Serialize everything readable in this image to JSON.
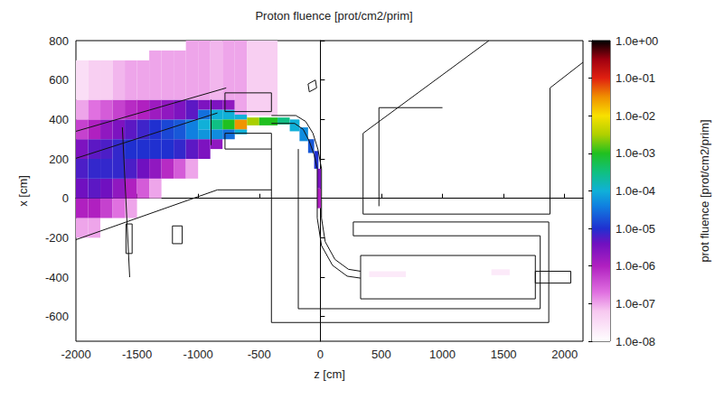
{
  "chart_data": {
    "type": "heatmap",
    "title": "Proton fluence [prot/cm2/prim]",
    "x_label": "z [cm]",
    "y_label": "x [cm]",
    "xlim": [
      -2000,
      2150
    ],
    "ylim": [
      -725,
      800
    ],
    "xticks": [
      -2000,
      -1500,
      -1000,
      -500,
      0,
      500,
      1000,
      1500,
      2000
    ],
    "yticks": [
      -600,
      -400,
      -200,
      0,
      200,
      400,
      600,
      800
    ],
    "grid": false,
    "colorbar": {
      "label": "prot fluence [prot/cm2/prim]",
      "log": true,
      "range": [
        1e-08,
        1
      ],
      "ticks": [
        {
          "value": 1,
          "label": "1.0e+00"
        },
        {
          "value": 0.1,
          "label": "1.0e-01"
        },
        {
          "value": 0.01,
          "label": "1.0e-02"
        },
        {
          "value": 0.001,
          "label": "1.0e-03"
        },
        {
          "value": 0.0001,
          "label": "1.0e-04"
        },
        {
          "value": 1e-05,
          "label": "1.0e-05"
        },
        {
          "value": 1e-06,
          "label": "1.0e-06"
        },
        {
          "value": 1e-07,
          "label": "1.0e-07"
        },
        {
          "value": 1e-08,
          "label": "1.0e-08"
        }
      ]
    },
    "cells": [
      [
        -2000,
        -1900,
        -200,
        -100,
        1e-07
      ],
      [
        -2000,
        -1900,
        -100,
        0,
        1e-06
      ],
      [
        -2000,
        -1900,
        0,
        100,
        4e-06
      ],
      [
        -2000,
        -1900,
        100,
        200,
        6e-06
      ],
      [
        -2000,
        -1900,
        200,
        300,
        3e-06
      ],
      [
        -2000,
        -1900,
        300,
        400,
        5e-07
      ],
      [
        -2000,
        -1900,
        400,
        500,
        1e-07
      ],
      [
        -2000,
        -1900,
        500,
        700,
        3e-08
      ],
      [
        -1900,
        -1800,
        -200,
        -100,
        1e-07
      ],
      [
        -1900,
        -1800,
        -100,
        0,
        1e-06
      ],
      [
        -1900,
        -1800,
        0,
        100,
        5e-06
      ],
      [
        -1900,
        -1800,
        100,
        200,
        8e-06
      ],
      [
        -1900,
        -1800,
        200,
        300,
        5e-06
      ],
      [
        -1900,
        -1800,
        300,
        400,
        1e-06
      ],
      [
        -1900,
        -1800,
        400,
        500,
        2e-07
      ],
      [
        -1900,
        -1800,
        500,
        700,
        5e-08
      ],
      [
        -1800,
        -1700,
        -100,
        0,
        5e-07
      ],
      [
        -1800,
        -1700,
        0,
        100,
        4e-06
      ],
      [
        -1800,
        -1700,
        100,
        200,
        8e-06
      ],
      [
        -1800,
        -1700,
        200,
        300,
        6e-06
      ],
      [
        -1800,
        -1700,
        300,
        400,
        2e-06
      ],
      [
        -1800,
        -1700,
        400,
        500,
        3e-07
      ],
      [
        -1800,
        -1700,
        500,
        700,
        5e-08
      ],
      [
        -1700,
        -1600,
        -100,
        0,
        2e-07
      ],
      [
        -1700,
        -1600,
        0,
        100,
        2e-06
      ],
      [
        -1700,
        -1600,
        100,
        200,
        8e-06
      ],
      [
        -1700,
        -1600,
        200,
        300,
        8e-06
      ],
      [
        -1700,
        -1600,
        300,
        400,
        3e-06
      ],
      [
        -1700,
        -1600,
        400,
        500,
        5e-07
      ],
      [
        -1700,
        -1600,
        500,
        700,
        8e-08
      ],
      [
        -1600,
        -1500,
        -100,
        0,
        1e-07
      ],
      [
        -1600,
        -1500,
        0,
        100,
        1e-06
      ],
      [
        -1600,
        -1500,
        100,
        200,
        6e-06
      ],
      [
        -1600,
        -1500,
        200,
        300,
        1e-05
      ],
      [
        -1600,
        -1500,
        300,
        400,
        5e-06
      ],
      [
        -1600,
        -1500,
        400,
        500,
        8e-07
      ],
      [
        -1600,
        -1500,
        500,
        700,
        1e-07
      ],
      [
        -1500,
        -1400,
        0,
        100,
        3e-07
      ],
      [
        -1500,
        -1400,
        100,
        200,
        4e-06
      ],
      [
        -1500,
        -1400,
        200,
        300,
        1e-05
      ],
      [
        -1500,
        -1400,
        300,
        400,
        7e-06
      ],
      [
        -1500,
        -1400,
        400,
        500,
        1e-06
      ],
      [
        -1500,
        -1400,
        500,
        700,
        1e-07
      ],
      [
        -1400,
        -1300,
        0,
        100,
        1e-07
      ],
      [
        -1400,
        -1300,
        100,
        200,
        2e-06
      ],
      [
        -1400,
        -1300,
        200,
        300,
        1e-05
      ],
      [
        -1400,
        -1300,
        300,
        400,
        1e-05
      ],
      [
        -1400,
        -1300,
        400,
        500,
        1.5e-06
      ],
      [
        -1400,
        -1300,
        500,
        750,
        1e-07
      ],
      [
        -1300,
        -1200,
        100,
        200,
        8e-07
      ],
      [
        -1300,
        -1200,
        200,
        300,
        1e-05
      ],
      [
        -1300,
        -1200,
        300,
        400,
        1.5e-05
      ],
      [
        -1300,
        -1200,
        400,
        500,
        2e-06
      ],
      [
        -1300,
        -1200,
        500,
        750,
        1e-07
      ],
      [
        -1200,
        -1100,
        100,
        200,
        3e-07
      ],
      [
        -1200,
        -1100,
        200,
        300,
        8e-06
      ],
      [
        -1200,
        -1100,
        300,
        400,
        2e-05
      ],
      [
        -1200,
        -1100,
        400,
        500,
        3e-06
      ],
      [
        -1200,
        -1100,
        500,
        750,
        1e-07
      ],
      [
        -1100,
        -1000,
        100,
        200,
        1e-07
      ],
      [
        -1100,
        -1000,
        200,
        300,
        5e-06
      ],
      [
        -1100,
        -1000,
        300,
        400,
        4e-05
      ],
      [
        -1100,
        -1000,
        400,
        500,
        5e-06
      ],
      [
        -1100,
        -1000,
        500,
        800,
        1e-07
      ],
      [
        -1000,
        -900,
        200,
        300,
        3e-06
      ],
      [
        -1000,
        -900,
        300,
        350,
        6e-05
      ],
      [
        -1000,
        -900,
        350,
        400,
        0.0001
      ],
      [
        -1000,
        -900,
        400,
        450,
        3e-05
      ],
      [
        -1000,
        -900,
        450,
        500,
        3e-06
      ],
      [
        -1000,
        -900,
        500,
        800,
        1e-07
      ],
      [
        -900,
        -800,
        250,
        300,
        2e-06
      ],
      [
        -900,
        -800,
        300,
        350,
        5e-05
      ],
      [
        -900,
        -800,
        350,
        400,
        0.0003
      ],
      [
        -900,
        -800,
        400,
        450,
        0.0001
      ],
      [
        -900,
        -800,
        450,
        500,
        3e-06
      ],
      [
        -900,
        -800,
        500,
        800,
        8e-08
      ],
      [
        -800,
        -700,
        300,
        350,
        3e-05
      ],
      [
        -800,
        -700,
        350,
        400,
        0.001
      ],
      [
        -800,
        -700,
        400,
        450,
        0.0001
      ],
      [
        -800,
        -700,
        450,
        500,
        2e-06
      ],
      [
        -800,
        -700,
        500,
        800,
        1e-07
      ],
      [
        -700,
        -600,
        325,
        350,
        0.0001
      ],
      [
        -700,
        -600,
        350,
        400,
        0.03
      ],
      [
        -700,
        -600,
        400,
        425,
        0.0001
      ],
      [
        -700,
        -600,
        425,
        800,
        1e-07
      ],
      [
        -600,
        -500,
        370,
        410,
        0.003
      ],
      [
        -500,
        -350,
        370,
        410,
        0.001
      ],
      [
        -600,
        -350,
        420,
        800,
        5e-08
      ],
      [
        -350,
        -250,
        375,
        410,
        0.0003
      ],
      [
        -250,
        -170,
        340,
        400,
        0.0001
      ],
      [
        -170,
        -100,
        290,
        360,
        5e-05
      ],
      [
        -100,
        -50,
        230,
        300,
        2e-05
      ],
      [
        -50,
        -15,
        150,
        240,
        1e-05
      ],
      [
        -25,
        5,
        50,
        150,
        3e-06
      ],
      [
        -25,
        5,
        -50,
        50,
        1e-06
      ],
      [
        400,
        700,
        -400,
        -370,
        2e-08
      ],
      [
        1400,
        1550,
        -390,
        -360,
        2e-08
      ]
    ],
    "geometry": [
      [
        [
          -400,
          420
        ],
        [
          -200,
          420
        ],
        [
          -120,
          390
        ],
        [
          -60,
          330
        ],
        [
          -20,
          250
        ],
        [
          10,
          150
        ],
        [
          10,
          -100
        ],
        [
          40,
          -220
        ],
        [
          120,
          -310
        ],
        [
          230,
          -360
        ],
        [
          330,
          -370
        ]
      ],
      [
        [
          -400,
          380
        ],
        [
          -210,
          380
        ],
        [
          -140,
          350
        ],
        [
          -90,
          290
        ],
        [
          -50,
          220
        ],
        [
          -25,
          150
        ],
        [
          -25,
          -100
        ],
        [
          10,
          -240
        ],
        [
          100,
          -340
        ],
        [
          220,
          -395
        ],
        [
          330,
          -405
        ]
      ],
      [
        [
          -400,
          250
        ],
        [
          -400,
          -630
        ],
        [
          1870,
          -630
        ],
        [
          1870,
          -120
        ],
        [
          270,
          -120
        ]
      ],
      [
        [
          -180,
          250
        ],
        [
          -180,
          -560
        ],
        [
          1800,
          -560
        ],
        [
          1800,
          -190
        ],
        [
          270,
          -190
        ],
        [
          270,
          -120
        ]
      ],
      [
        [
          330,
          -290
        ],
        [
          1760,
          -290
        ],
        [
          1760,
          -510
        ],
        [
          330,
          -510
        ],
        [
          330,
          -290
        ]
      ],
      [
        [
          1760,
          -370
        ],
        [
          2050,
          -370
        ],
        [
          2050,
          -430
        ],
        [
          1760,
          -430
        ],
        [
          1760,
          -370
        ]
      ],
      [
        [
          350,
          330
        ],
        [
          1380,
          800
        ]
      ],
      [
        [
          350,
          330
        ],
        [
          350,
          -80
        ],
        [
          1880,
          -80
        ],
        [
          1880,
          560
        ],
        [
          2150,
          690
        ]
      ],
      [
        [
          480,
          -40
        ],
        [
          480,
          460
        ],
        [
          1000,
          460
        ]
      ],
      [
        [
          -2000,
          203
        ],
        [
          -842,
          433
        ]
      ],
      [
        [
          -2000,
          -210
        ],
        [
          -842,
          43
        ],
        [
          -400,
          43
        ]
      ],
      [
        [
          -2000,
          340
        ],
        [
          -770,
          560
        ]
      ],
      [
        [
          -1620,
          360
        ],
        [
          -1560,
          -400
        ]
      ],
      [
        [
          -780,
          440
        ],
        [
          -400,
          440
        ],
        [
          -400,
          535
        ],
        [
          -780,
          535
        ],
        [
          -780,
          440
        ]
      ],
      [
        [
          -780,
          250
        ],
        [
          -400,
          250
        ],
        [
          -400,
          330
        ],
        [
          -780,
          330
        ],
        [
          -780,
          250
        ]
      ],
      [
        [
          -894,
          500
        ],
        [
          -894,
          270
        ]
      ],
      [
        [
          -90,
          540
        ],
        [
          -30,
          560
        ],
        [
          -40,
          600
        ],
        [
          -100,
          580
        ],
        [
          -90,
          540
        ]
      ],
      [
        [
          -1590,
          -130
        ],
        [
          -1540,
          -130
        ],
        [
          -1540,
          -280
        ],
        [
          -1590,
          -280
        ],
        [
          -1590,
          -130
        ]
      ],
      [
        [
          -1210,
          -140
        ],
        [
          -1130,
          -140
        ],
        [
          -1130,
          -230
        ],
        [
          -1210,
          -230
        ],
        [
          -1210,
          -140
        ]
      ]
    ]
  }
}
